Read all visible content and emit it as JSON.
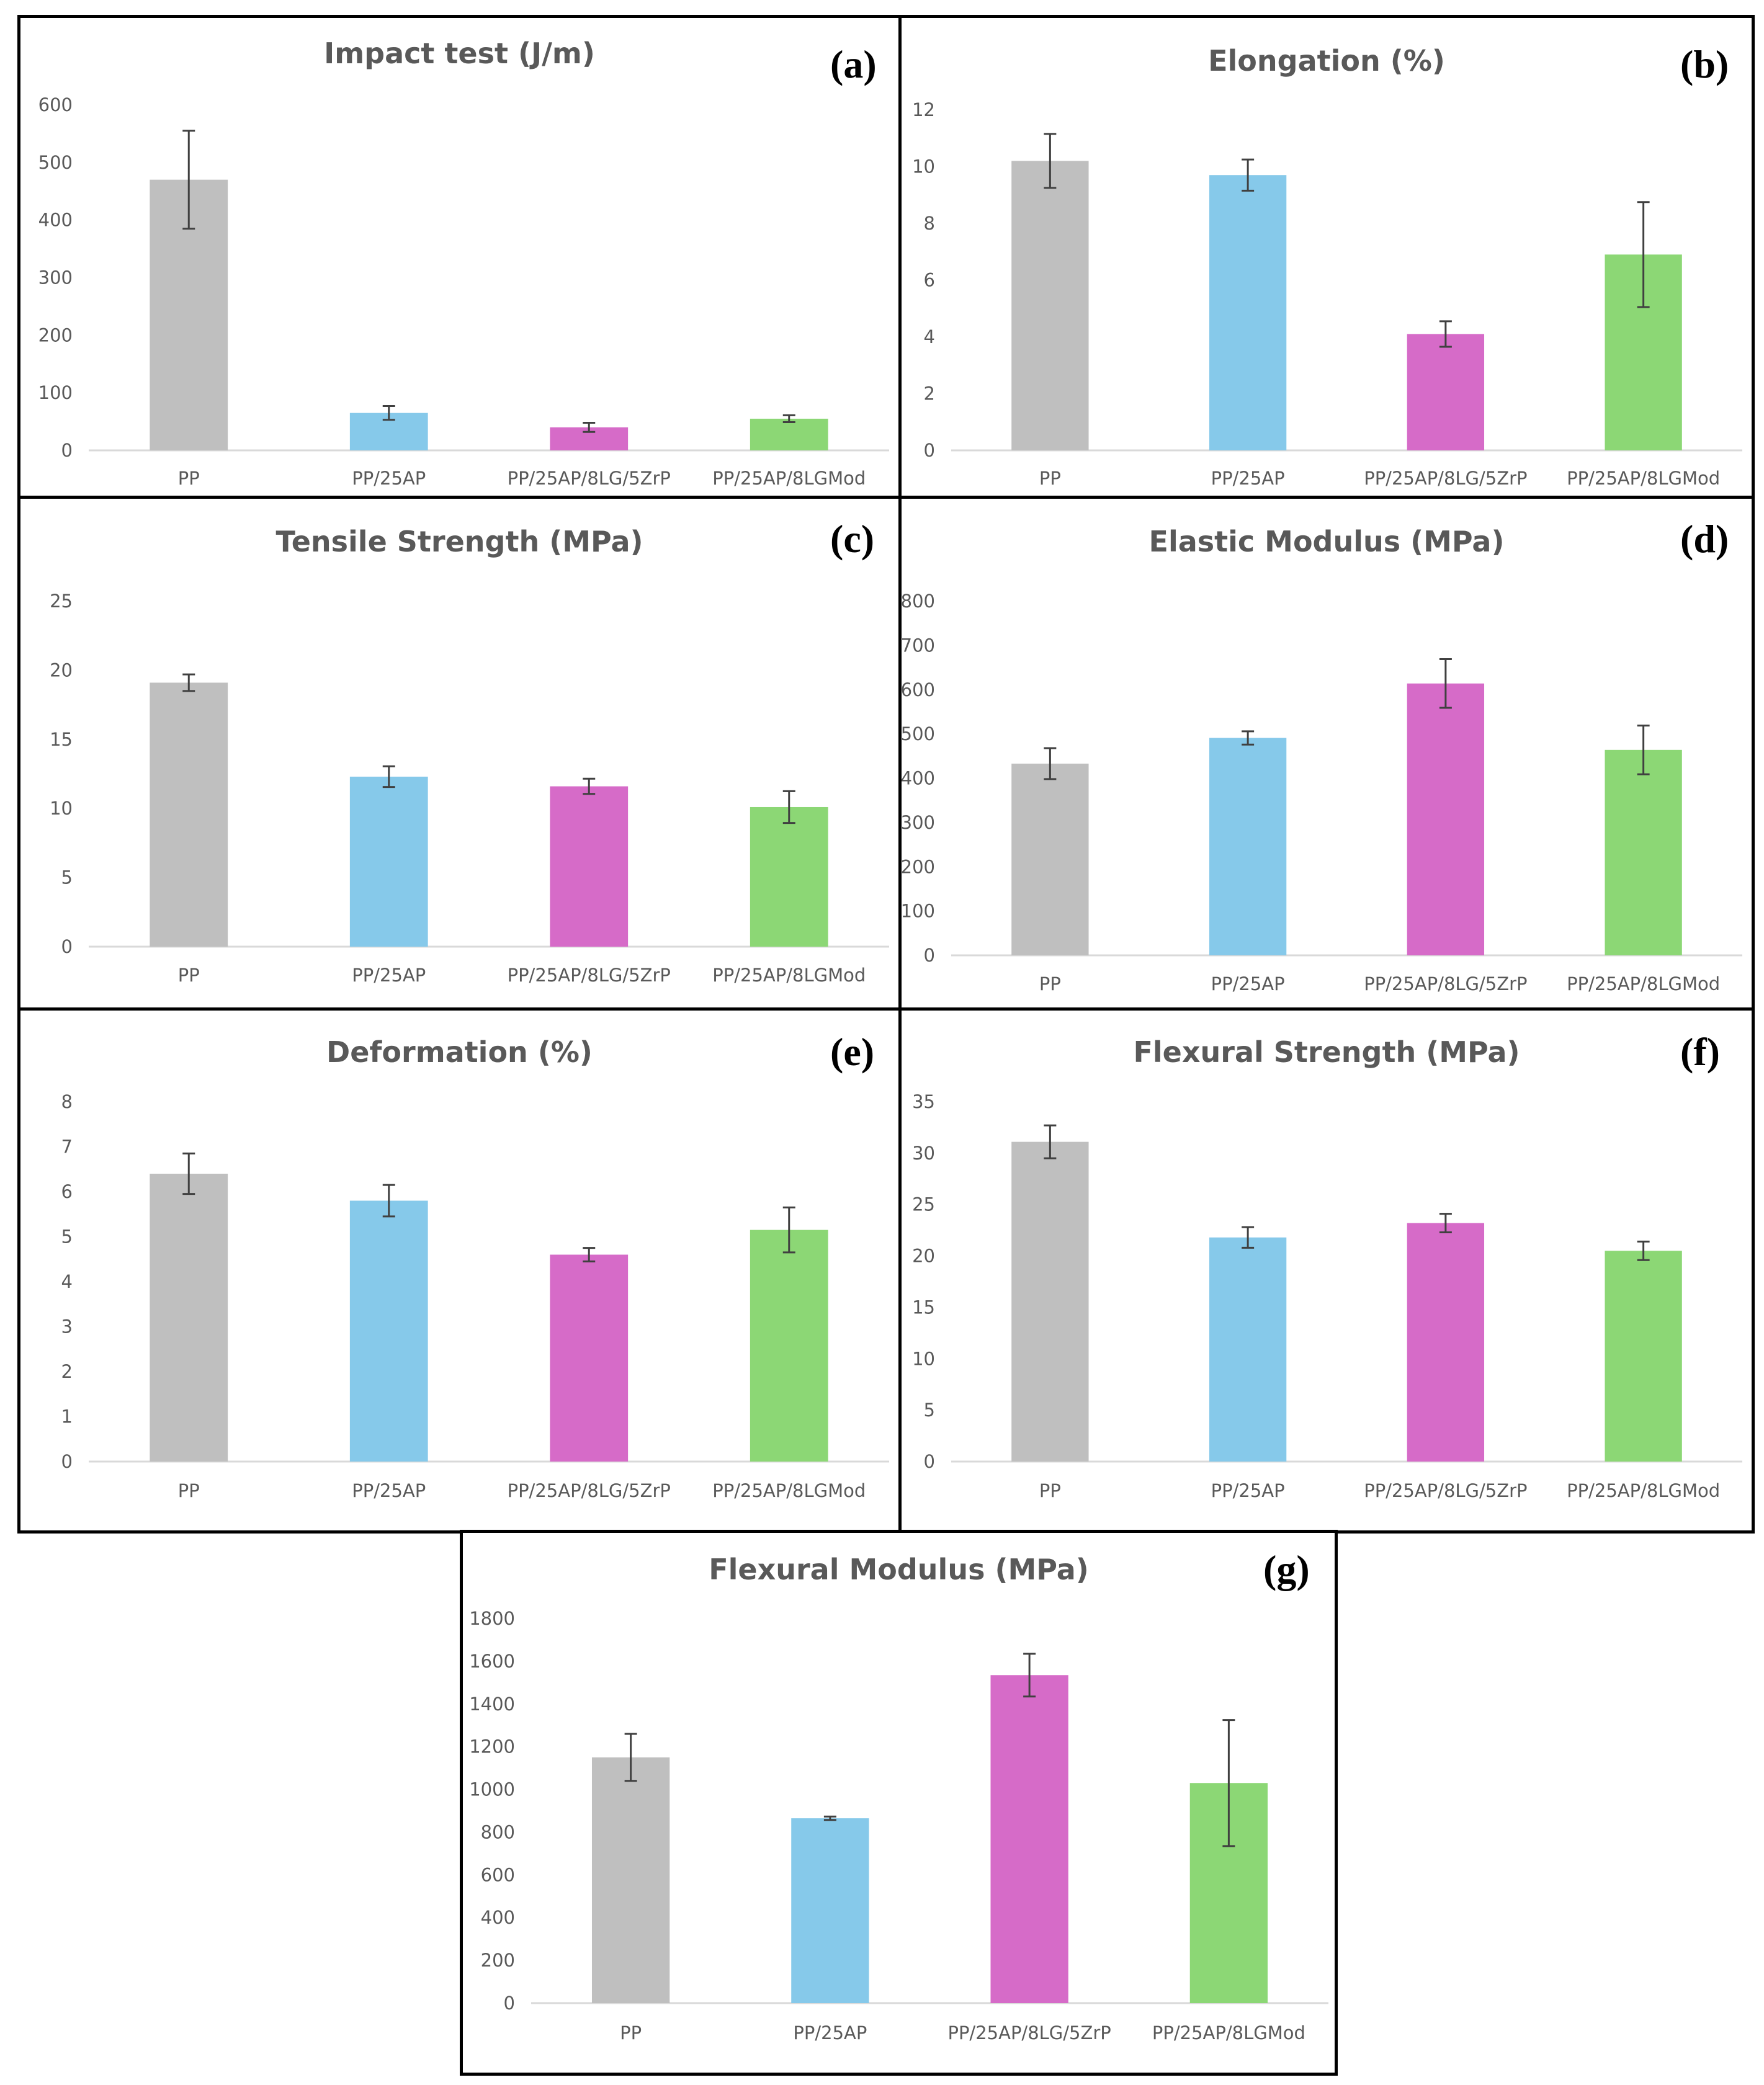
{
  "colors": {
    "PP": "#bfbfbf",
    "PP/25AP": "#86c9ea",
    "PP/25AP/8LG/5ZrP": "#d66bc8",
    "PP/25AP/8LGMod": "#8cd775",
    "axis": "#d9d9d9",
    "error": "#404040"
  },
  "chart_data": [
    {
      "id": "a",
      "letter": "(a)",
      "type": "bar",
      "title": "Impact test (J/m)",
      "categories": [
        "PP",
        "PP/25AP",
        "PP/25AP/8LG/5ZrP",
        "PP/25AP/8LGMod"
      ],
      "values": [
        470,
        65,
        40,
        55
      ],
      "errors": [
        85,
        12,
        8,
        6
      ],
      "ylim": [
        0,
        600
      ],
      "ystep": 100,
      "yticks": [
        "0",
        "100",
        "200",
        "300",
        "400",
        "500",
        "600"
      ]
    },
    {
      "id": "b",
      "letter": "(b)",
      "type": "bar",
      "title": "Elongation (%)",
      "categories": [
        "PP",
        "PP/25AP",
        "PP/25AP/8LG/5ZrP",
        "PP/25AP/8LGMod"
      ],
      "values": [
        10.2,
        9.7,
        4.1,
        6.9
      ],
      "errors": [
        0.95,
        0.55,
        0.45,
        1.85
      ],
      "ylim": [
        0,
        12
      ],
      "ystep": 2,
      "yticks": [
        "0",
        "2",
        "4",
        "6",
        "8",
        "10",
        "12"
      ]
    },
    {
      "id": "c",
      "letter": "(c)",
      "type": "bar",
      "title": "Tensile Strength (MPa)",
      "categories": [
        "PP",
        "PP/25AP",
        "PP/25AP/8LG/5ZrP",
        "PP/25AP/8LGMod"
      ],
      "values": [
        19.1,
        12.3,
        11.6,
        10.1
      ],
      "errors": [
        0.6,
        0.75,
        0.55,
        1.15
      ],
      "ylim": [
        0,
        25
      ],
      "ystep": 5,
      "yticks": [
        "0",
        "5",
        "10",
        "15",
        "20",
        "25"
      ]
    },
    {
      "id": "d",
      "letter": "(d)",
      "type": "bar",
      "title": "Elastic Modulus (MPa)",
      "categories": [
        "PP",
        "PP/25AP",
        "PP/25AP/8LG/5ZrP",
        "PP/25AP/8LGMod"
      ],
      "values": [
        433,
        491,
        614,
        464
      ],
      "errors": [
        35,
        15,
        55,
        55
      ],
      "ylim": [
        0,
        800
      ],
      "ystep": 100,
      "yticks": [
        "0",
        "100",
        "200",
        "300",
        "400",
        "500",
        "600",
        "700",
        "800"
      ]
    },
    {
      "id": "e",
      "letter": "(e)",
      "type": "bar",
      "title": "Deformation (%)",
      "categories": [
        "PP",
        "PP/25AP",
        "PP/25AP/8LG/5ZrP",
        "PP/25AP/8LGMod"
      ],
      "values": [
        6.4,
        5.8,
        4.6,
        5.15
      ],
      "errors": [
        0.45,
        0.35,
        0.15,
        0.5
      ],
      "ylim": [
        0,
        8
      ],
      "ystep": 1,
      "yticks": [
        "0",
        "1",
        "2",
        "3",
        "4",
        "5",
        "6",
        "7",
        "8"
      ]
    },
    {
      "id": "f",
      "letter": "(f)",
      "type": "bar",
      "title": "Flexural Strength (MPa)",
      "categories": [
        "PP",
        "PP/25AP",
        "PP/25AP/8LG/5ZrP",
        "PP/25AP/8LGMod"
      ],
      "values": [
        31.1,
        21.8,
        23.2,
        20.5
      ],
      "errors": [
        1.6,
        1.0,
        0.9,
        0.9
      ],
      "ylim": [
        0,
        35
      ],
      "ystep": 5,
      "yticks": [
        "0",
        "5",
        "10",
        "15",
        "20",
        "25",
        "30",
        "35"
      ]
    },
    {
      "id": "g",
      "letter": "(g)",
      "type": "bar",
      "title": "Flexural Modulus (MPa)",
      "categories": [
        "PP",
        "PP/25AP",
        "PP/25AP/8LG/5ZrP",
        "PP/25AP/8LGMod"
      ],
      "values": [
        1150,
        865,
        1535,
        1030
      ],
      "errors": [
        110,
        8,
        100,
        295
      ],
      "ylim": [
        0,
        1800
      ],
      "ystep": 200,
      "yticks": [
        "0",
        "200",
        "400",
        "600",
        "800",
        "1000",
        "1200",
        "1400",
        "1600",
        "1800"
      ]
    }
  ]
}
